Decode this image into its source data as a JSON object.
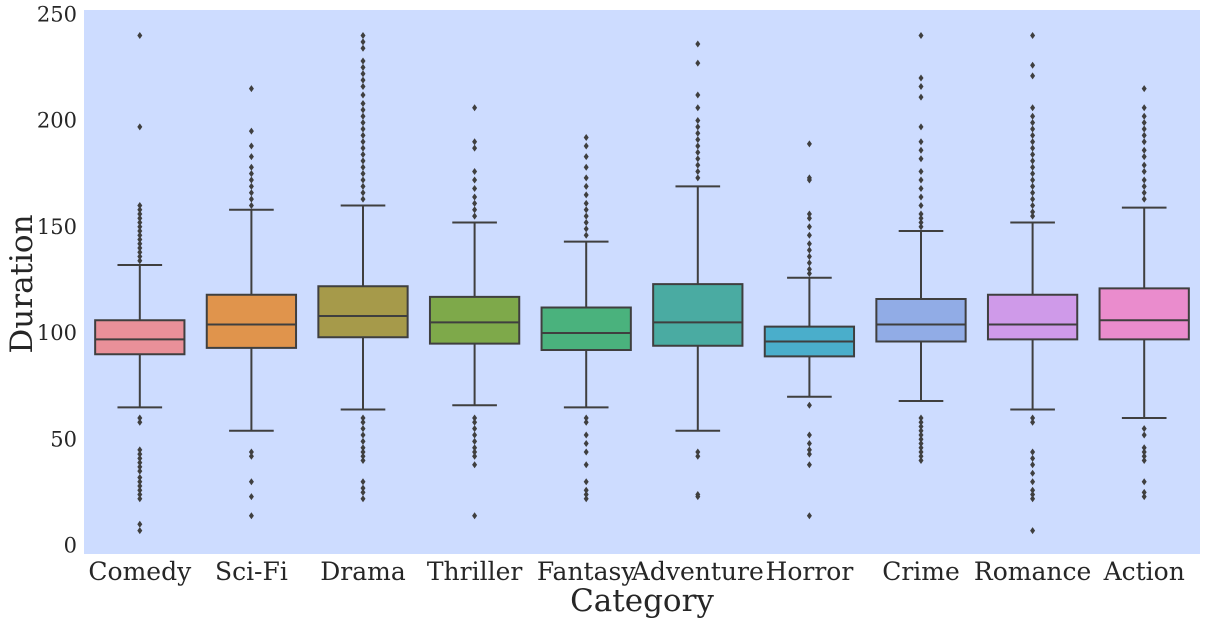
{
  "chart_data": {
    "type": "box",
    "title": "",
    "xlabel": "Category",
    "ylabel": "Duration",
    "ylim": [
      -4,
      252
    ],
    "yticks": [
      0,
      50,
      100,
      150,
      200,
      250
    ],
    "grid": false,
    "plot_background": "#cddcff",
    "categories": [
      "Comedy",
      "Sci-Fi",
      "Drama",
      "Thriller",
      "Fantasy",
      "Adventure",
      "Horror",
      "Crime",
      "Romance",
      "Action"
    ],
    "series": [
      {
        "category": "Comedy",
        "color": "#e99099",
        "whisker_low": 65,
        "q1": 90,
        "median": 97,
        "q3": 106,
        "whisker_high": 132,
        "outliers": [
          240,
          197,
          160,
          158,
          156,
          154,
          152,
          150,
          148,
          146,
          144,
          142,
          140,
          138,
          136,
          134,
          60,
          58,
          45,
          43,
          41,
          39,
          37,
          35,
          32,
          30,
          28,
          26,
          24,
          22,
          10,
          7
        ]
      },
      {
        "category": "Sci-Fi",
        "color": "#e0944c",
        "whisker_low": 54,
        "q1": 93,
        "median": 104,
        "q3": 118,
        "whisker_high": 158,
        "outliers": [
          215,
          195,
          188,
          183,
          178,
          175,
          172,
          169,
          166,
          163,
          160,
          44,
          42,
          30,
          23,
          14
        ]
      },
      {
        "category": "Drama",
        "color": "#a69a4a",
        "whisker_low": 64,
        "q1": 98,
        "median": 108,
        "q3": 122,
        "whisker_high": 160,
        "outliers": [
          240,
          237,
          234,
          228,
          225,
          222,
          219,
          216,
          212,
          208,
          205,
          202,
          199,
          196,
          193,
          190,
          187,
          184,
          181,
          178,
          175,
          172,
          169,
          166,
          163,
          60,
          58,
          55,
          52,
          49,
          46,
          44,
          42,
          40,
          30,
          27,
          25,
          22
        ]
      },
      {
        "category": "Thriller",
        "color": "#7ea94a",
        "whisker_low": 66,
        "q1": 95,
        "median": 105,
        "q3": 117,
        "whisker_high": 152,
        "outliers": [
          206,
          190,
          187,
          176,
          172,
          168,
          164,
          161,
          158,
          155,
          60,
          58,
          55,
          52,
          49,
          46,
          44,
          42,
          38,
          14
        ]
      },
      {
        "category": "Fantasy",
        "color": "#4ab27d",
        "whisker_low": 65,
        "q1": 92,
        "median": 100,
        "q3": 112,
        "whisker_high": 143,
        "outliers": [
          192,
          188,
          183,
          178,
          173,
          169,
          165,
          161,
          158,
          155,
          152,
          149,
          146,
          60,
          58,
          52,
          48,
          44,
          38,
          30,
          26,
          24,
          22
        ]
      },
      {
        "category": "Adventure",
        "color": "#4aaba2",
        "whisker_low": 54,
        "q1": 94,
        "median": 105,
        "q3": 123,
        "whisker_high": 169,
        "outliers": [
          236,
          227,
          212,
          206,
          200,
          197,
          194,
          191,
          188,
          185,
          182,
          179,
          176,
          173,
          44,
          42,
          24,
          23
        ]
      },
      {
        "category": "Horror",
        "color": "#4aaecb",
        "whisker_low": 70,
        "q1": 89,
        "median": 96,
        "q3": 103,
        "whisker_high": 126,
        "outliers": [
          189,
          173,
          172,
          156,
          154,
          150,
          146,
          142,
          139,
          136,
          133,
          130,
          128,
          66,
          52,
          48,
          45,
          43,
          38,
          14
        ]
      },
      {
        "category": "Crime",
        "color": "#91ace6",
        "whisker_low": 68,
        "q1": 96,
        "median": 104,
        "q3": 116,
        "whisker_high": 148,
        "outliers": [
          240,
          220,
          216,
          211,
          197,
          190,
          186,
          182,
          176,
          172,
          168,
          164,
          160,
          156,
          154,
          152,
          150,
          60,
          58,
          56,
          54,
          52,
          50,
          48,
          46,
          44,
          42,
          40
        ]
      },
      {
        "category": "Romance",
        "color": "#cf9ae9",
        "whisker_low": 64,
        "q1": 97,
        "median": 104,
        "q3": 118,
        "whisker_high": 152,
        "outliers": [
          240,
          226,
          221,
          206,
          202,
          199,
          196,
          193,
          190,
          187,
          184,
          181,
          178,
          175,
          172,
          169,
          166,
          163,
          160,
          157,
          155,
          60,
          58,
          44,
          41,
          38,
          34,
          30,
          26,
          24,
          22,
          7
        ]
      },
      {
        "category": "Action",
        "color": "#ea8ccd",
        "whisker_low": 60,
        "q1": 97,
        "median": 106,
        "q3": 121,
        "whisker_high": 159,
        "outliers": [
          215,
          206,
          202,
          199,
          196,
          193,
          190,
          186,
          183,
          179,
          176,
          172,
          169,
          166,
          163,
          55,
          52,
          46,
          44,
          42,
          40,
          30,
          25,
          23
        ]
      }
    ]
  }
}
